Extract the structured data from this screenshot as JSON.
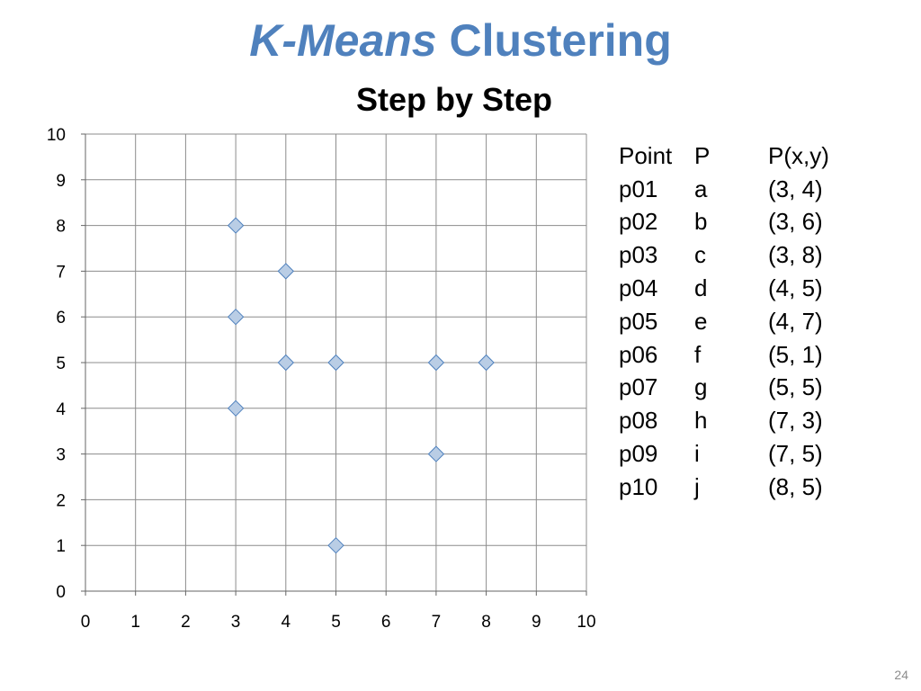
{
  "slide": {
    "title_emphasis": "K-Means",
    "title_rest": "Clustering",
    "subtitle": "Step by Step",
    "page_number": "24"
  },
  "table": {
    "headers": [
      "Point",
      "P",
      "P(x,y)"
    ],
    "rows": [
      [
        "p01",
        "a",
        "(3, 4)"
      ],
      [
        "p02",
        "b",
        "(3, 6)"
      ],
      [
        "p03",
        "c",
        "(3, 8)"
      ],
      [
        "p04",
        "d",
        "(4, 5)"
      ],
      [
        "p05",
        "e",
        "(4, 7)"
      ],
      [
        "p06",
        "f",
        "(5, 1)"
      ],
      [
        "p07",
        "g",
        "(5, 5)"
      ],
      [
        "p08",
        "h",
        "(7, 3)"
      ],
      [
        "p09",
        "i",
        "(7, 5)"
      ],
      [
        "p10",
        "j",
        "(8, 5)"
      ]
    ]
  },
  "chart_data": {
    "type": "scatter",
    "title": "",
    "xlabel": "",
    "ylabel": "",
    "xlim": [
      0,
      10
    ],
    "ylim": [
      0,
      10
    ],
    "xticks": [
      "0",
      "1",
      "2",
      "3",
      "4",
      "5",
      "6",
      "7",
      "8",
      "9",
      "10"
    ],
    "yticks": [
      "0",
      "1",
      "2",
      "3",
      "4",
      "5",
      "6",
      "7",
      "8",
      "9",
      "10"
    ],
    "grid": true,
    "legend": "none",
    "marker": "diamond",
    "marker_fill": "#B9CDE5",
    "marker_stroke": "#4F81BD",
    "points": [
      {
        "x": 3,
        "y": 4
      },
      {
        "x": 3,
        "y": 6
      },
      {
        "x": 3,
        "y": 8
      },
      {
        "x": 4,
        "y": 5
      },
      {
        "x": 4,
        "y": 7
      },
      {
        "x": 5,
        "y": 1
      },
      {
        "x": 5,
        "y": 5
      },
      {
        "x": 7,
        "y": 3
      },
      {
        "x": 7,
        "y": 5
      },
      {
        "x": 8,
        "y": 5
      }
    ]
  }
}
